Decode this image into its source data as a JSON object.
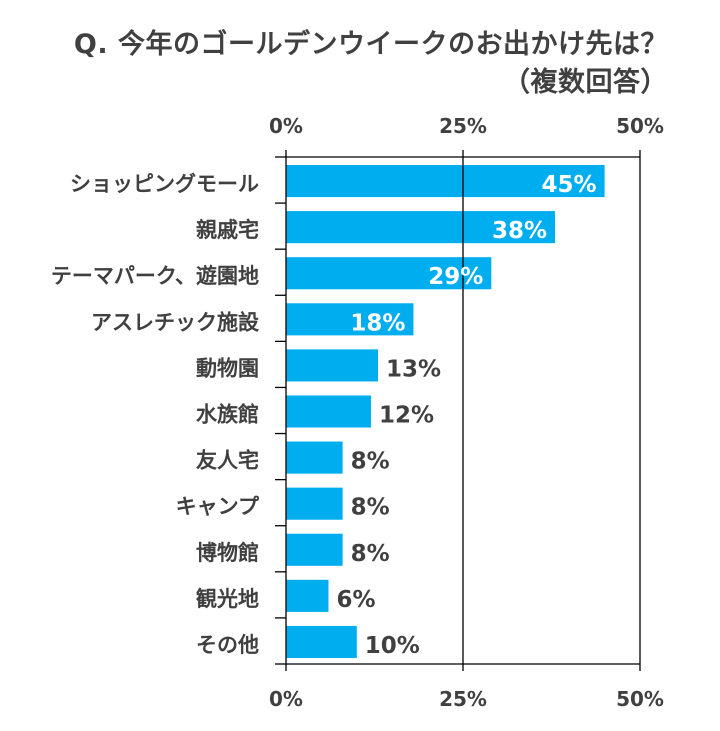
{
  "chart_data": {
    "type": "bar",
    "orientation": "horizontal",
    "title": "Q. 今年のゴールデンウイークのお出かけ先は？",
    "subtitle": "（複数回答）",
    "categories": [
      "ショッピングモール",
      "親戚宅",
      "テーマパーク、遊園地",
      "アスレチック施設",
      "動物園",
      "水族館",
      "友人宅",
      "キャンプ",
      "博物館",
      "観光地",
      "その他"
    ],
    "values": [
      45,
      38,
      29,
      18,
      13,
      12,
      8,
      8,
      8,
      6,
      10
    ],
    "data_labels": [
      "45%",
      "38%",
      "29%",
      "18%",
      "13%",
      "12%",
      "8%",
      "8%",
      "8%",
      "6%",
      "10%"
    ],
    "xlim": [
      0,
      50
    ],
    "x_ticks": [
      0,
      25,
      50
    ],
    "x_tick_labels": [
      "0%",
      "25%",
      "50%"
    ],
    "x_axis_position": "top and bottom",
    "grid": true,
    "colors": {
      "bar": "#00AEEF",
      "text": "#404040",
      "label_inside": "#FFFFFF",
      "axis": "#000000"
    }
  }
}
